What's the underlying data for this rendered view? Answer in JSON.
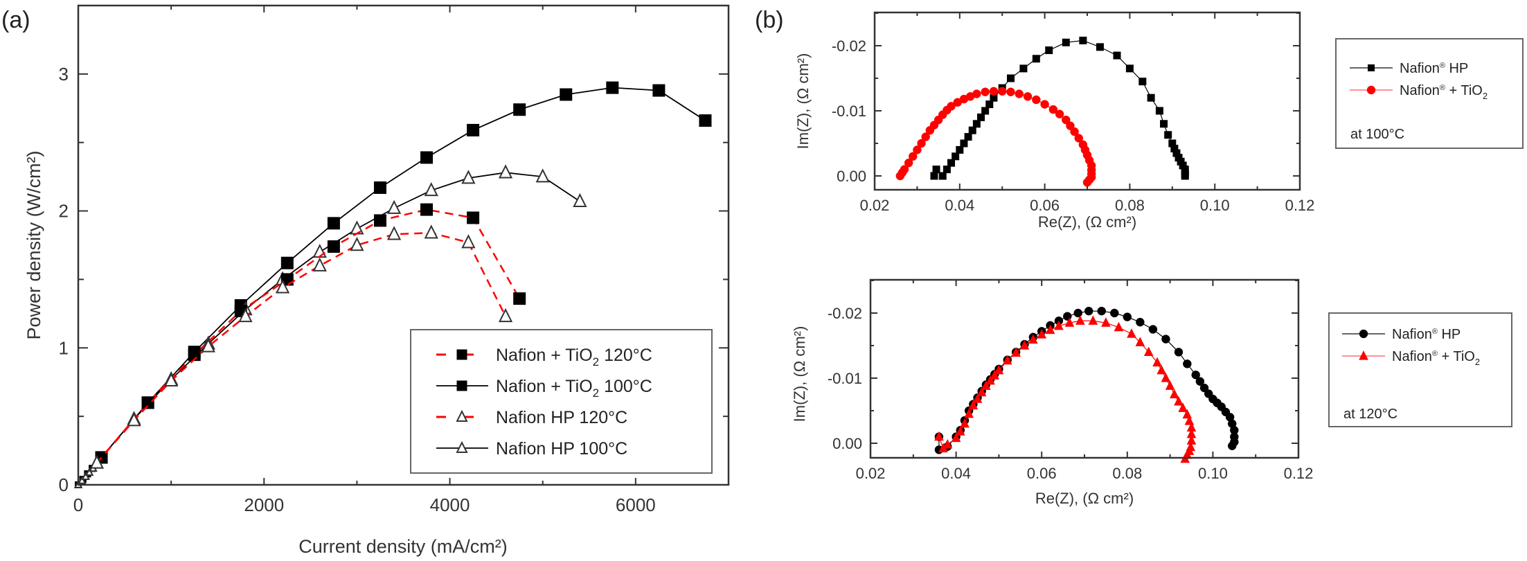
{
  "chart_data": [
    {
      "id": "a",
      "panel_label": "(a)",
      "type": "line",
      "title": "",
      "xlabel": "Current density (mA/cm²)",
      "ylabel": "Power density (W/cm²)",
      "xlim": [
        0,
        7000
      ],
      "ylim": [
        0,
        3.5
      ],
      "xticks": [
        0,
        2000,
        4000,
        6000
      ],
      "xticks_minor": [
        1000,
        3000,
        5000,
        7000
      ],
      "yticks": [
        0,
        1,
        2,
        3
      ],
      "yticks_minor": [
        0.5,
        1.5,
        2.5,
        3.5
      ],
      "grid": false,
      "legend_position": "bottom-right",
      "series": [
        {
          "name": "Nafion + TiO2 120°C",
          "label_main": "Nafion + TiO",
          "label_sub": "2",
          "label_tail": " 120°C",
          "color": "#ff0000",
          "line": "dashed",
          "marker": "square-filled",
          "x": [
            0,
            50,
            100,
            150,
            250,
            750,
            1250,
            1750,
            2250,
            2750,
            3250,
            3750,
            4250,
            4750
          ],
          "y": [
            0,
            0.04,
            0.08,
            0.12,
            0.2,
            0.6,
            0.95,
            1.27,
            1.5,
            1.74,
            1.93,
            2.01,
            1.95,
            1.36
          ]
        },
        {
          "name": "Nafion + TiO2 100°C",
          "label_main": "Nafion + TiO",
          "label_sub": "2",
          "label_tail": " 100°C",
          "color": "#000000",
          "line": "solid",
          "marker": "square-filled",
          "x": [
            0,
            50,
            100,
            150,
            250,
            750,
            1250,
            1750,
            2250,
            2750,
            3250,
            3750,
            4250,
            4750,
            5250,
            5750,
            6250,
            6750
          ],
          "y": [
            0,
            0.04,
            0.08,
            0.12,
            0.2,
            0.6,
            0.97,
            1.31,
            1.62,
            1.91,
            2.17,
            2.39,
            2.59,
            2.74,
            2.85,
            2.9,
            2.88,
            2.66
          ]
        },
        {
          "name": "Nafion HP 120°C",
          "label_main": "Nafion HP 120°C",
          "label_sub": "",
          "label_tail": "",
          "color": "#ff0000",
          "line": "dashed",
          "marker": "triangle-open",
          "x": [
            0,
            40,
            80,
            120,
            160,
            200,
            600,
            1000,
            1400,
            1800,
            2200,
            2600,
            3000,
            3400,
            3800,
            4200,
            4600
          ],
          "y": [
            0,
            0.03,
            0.06,
            0.09,
            0.12,
            0.16,
            0.47,
            0.76,
            1.01,
            1.23,
            1.44,
            1.6,
            1.75,
            1.83,
            1.84,
            1.77,
            1.23
          ]
        },
        {
          "name": "Nafion HP 100°C",
          "label_main": "Nafion HP 100°C",
          "label_sub": "",
          "label_tail": "",
          "color": "#000000",
          "line": "solid",
          "marker": "triangle-open",
          "x": [
            0,
            40,
            80,
            120,
            160,
            200,
            600,
            1000,
            1400,
            1800,
            2200,
            2600,
            3000,
            3400,
            3800,
            4200,
            4600,
            5000,
            5400
          ],
          "y": [
            0,
            0.03,
            0.06,
            0.09,
            0.12,
            0.16,
            0.48,
            0.77,
            1.03,
            1.28,
            1.5,
            1.7,
            1.87,
            2.02,
            2.15,
            2.24,
            2.28,
            2.25,
            2.07
          ]
        }
      ]
    },
    {
      "id": "b-top",
      "panel_label": "(b)",
      "type": "scatter",
      "title": "",
      "xlabel": "Re(Z), (Ω cm²)",
      "ylabel": "Im(Z), (Ω cm²)",
      "xlim": [
        0.02,
        0.12
      ],
      "ylim": [
        0.002,
        -0.0255
      ],
      "xticks": [
        0.02,
        0.04,
        0.06,
        0.08,
        0.1,
        0.12
      ],
      "xtick_labels": [
        "0.02",
        "0.04",
        "0.06",
        "0.08",
        "0.10",
        "0.12"
      ],
      "yticks": [
        0.0,
        -0.01,
        -0.02
      ],
      "ytick_labels": [
        "0.00",
        "-0.01",
        "-0.02"
      ],
      "grid": false,
      "legend_position": "right-outside",
      "annotation": "at 100°C",
      "series": [
        {
          "name": "Nafion® HP",
          "label_main": "Nafion",
          "label_sup": "®",
          "label_tail": " HP",
          "label_sub": "",
          "color": "#000000",
          "marker": "square",
          "x": [
            0.034,
            0.0345,
            0.036,
            0.037,
            0.038,
            0.039,
            0.04,
            0.041,
            0.042,
            0.043,
            0.044,
            0.045,
            0.046,
            0.047,
            0.048,
            0.05,
            0.052,
            0.055,
            0.058,
            0.061,
            0.065,
            0.069,
            0.073,
            0.077,
            0.08,
            0.083,
            0.085,
            0.087,
            0.088,
            0.089,
            0.09,
            0.0905,
            0.091,
            0.0915,
            0.092,
            0.0925,
            0.093,
            0.093,
            0.093,
            0.093
          ],
          "y": [
            0.0,
            -0.001,
            0.0,
            -0.001,
            -0.002,
            -0.003,
            -0.004,
            -0.005,
            -0.006,
            -0.007,
            -0.008,
            -0.009,
            -0.01,
            -0.011,
            -0.012,
            -0.0135,
            -0.015,
            -0.0165,
            -0.018,
            -0.0193,
            -0.0205,
            -0.0208,
            -0.0198,
            -0.0185,
            -0.0165,
            -0.0145,
            -0.012,
            -0.01,
            -0.008,
            -0.0063,
            -0.005,
            -0.0042,
            -0.0035,
            -0.0028,
            -0.0022,
            -0.0016,
            -0.001,
            -0.0005,
            -0.0002,
            0.0
          ]
        },
        {
          "name": "Nafion® + TiO2",
          "label_main": "Nafion",
          "label_sup": "®",
          "label_tail": " + TiO",
          "label_sub": "2",
          "color": "#ff0000",
          "marker": "circle",
          "x": [
            0.026,
            0.0265,
            0.027,
            0.028,
            0.029,
            0.03,
            0.031,
            0.032,
            0.033,
            0.034,
            0.035,
            0.036,
            0.037,
            0.038,
            0.0395,
            0.041,
            0.0425,
            0.044,
            0.046,
            0.048,
            0.05,
            0.052,
            0.054,
            0.056,
            0.058,
            0.06,
            0.062,
            0.0635,
            0.065,
            0.066,
            0.067,
            0.068,
            0.069,
            0.0695,
            0.07,
            0.0705,
            0.071,
            0.071,
            0.071,
            0.071,
            0.0705,
            0.07
          ],
          "y": [
            0.0,
            -0.0005,
            -0.001,
            -0.002,
            -0.003,
            -0.004,
            -0.005,
            -0.006,
            -0.007,
            -0.0078,
            -0.0086,
            -0.0094,
            -0.0101,
            -0.0107,
            -0.0113,
            -0.0118,
            -0.0122,
            -0.0126,
            -0.0129,
            -0.013,
            -0.013,
            -0.0129,
            -0.0126,
            -0.0122,
            -0.0117,
            -0.011,
            -0.0102,
            -0.0095,
            -0.0086,
            -0.0077,
            -0.0068,
            -0.0058,
            -0.0048,
            -0.004,
            -0.0032,
            -0.0024,
            -0.0016,
            -0.0009,
            -0.0003,
            0.0002,
            0.0006,
            0.001
          ]
        }
      ]
    },
    {
      "id": "b-bottom",
      "panel_label": "",
      "type": "scatter",
      "title": "",
      "xlabel": "Re(Z), (Ω cm²)",
      "ylabel": "Im(Z), (Ω cm²)",
      "xlim": [
        0.02,
        0.12
      ],
      "ylim": [
        0.002,
        -0.0255
      ],
      "xticks": [
        0.02,
        0.04,
        0.06,
        0.08,
        0.1,
        0.12
      ],
      "xtick_labels": [
        "0.02",
        "0.04",
        "0.06",
        "0.08",
        "0.10",
        "0.12"
      ],
      "yticks": [
        0.0,
        -0.01,
        -0.02
      ],
      "ytick_labels": [
        "0.00",
        "-0.01",
        "-0.02"
      ],
      "grid": false,
      "legend_position": "right-outside",
      "annotation": "at 120°C",
      "series": [
        {
          "name": "Nafion® HP",
          "label_main": "Nafion",
          "label_sup": "®",
          "label_tail": " HP",
          "label_sub": "",
          "color": "#000000",
          "marker": "circle",
          "x": [
            0.036,
            0.036,
            0.038,
            0.04,
            0.041,
            0.042,
            0.043,
            0.044,
            0.045,
            0.046,
            0.047,
            0.048,
            0.049,
            0.05,
            0.052,
            0.054,
            0.056,
            0.058,
            0.06,
            0.062,
            0.064,
            0.066,
            0.0685,
            0.071,
            0.074,
            0.077,
            0.08,
            0.083,
            0.086,
            0.089,
            0.092,
            0.094,
            0.096,
            0.097,
            0.098,
            0.099,
            0.1,
            0.101,
            0.102,
            0.103,
            0.104,
            0.1045,
            0.105,
            0.105,
            0.105,
            0.1045
          ],
          "y": [
            -0.001,
            0.001,
            0.0005,
            -0.001,
            -0.002,
            -0.0035,
            -0.005,
            -0.006,
            -0.007,
            -0.008,
            -0.009,
            -0.0098,
            -0.0106,
            -0.0114,
            -0.0128,
            -0.014,
            -0.0152,
            -0.0163,
            -0.0172,
            -0.0181,
            -0.0188,
            -0.0195,
            -0.02,
            -0.0203,
            -0.0203,
            -0.02,
            -0.0194,
            -0.0186,
            -0.0175,
            -0.016,
            -0.014,
            -0.0122,
            -0.0105,
            -0.0095,
            -0.0085,
            -0.0076,
            -0.0068,
            -0.0062,
            -0.0056,
            -0.0048,
            -0.004,
            -0.003,
            -0.002,
            -0.001,
            -0.0002,
            0.0004
          ]
        },
        {
          "name": "Nafion® + TiO2",
          "label_main": "Nafion",
          "label_sup": "®",
          "label_tail": " + TiO",
          "label_sub": "2",
          "color": "#ff0000",
          "marker": "triangle",
          "x": [
            0.036,
            0.037,
            0.038,
            0.04,
            0.041,
            0.042,
            0.043,
            0.044,
            0.045,
            0.046,
            0.047,
            0.048,
            0.049,
            0.05,
            0.052,
            0.054,
            0.056,
            0.058,
            0.06,
            0.062,
            0.064,
            0.0665,
            0.069,
            0.072,
            0.075,
            0.078,
            0.081,
            0.083,
            0.085,
            0.087,
            0.088,
            0.089,
            0.09,
            0.091,
            0.092,
            0.093,
            0.094,
            0.0945,
            0.095,
            0.095,
            0.095,
            0.0948,
            0.0945,
            0.094,
            0.0935
          ],
          "y": [
            -0.001,
            0.0008,
            0.0002,
            -0.0008,
            -0.0018,
            -0.003,
            -0.0045,
            -0.0058,
            -0.0068,
            -0.0078,
            -0.0088,
            -0.0096,
            -0.0104,
            -0.0112,
            -0.0127,
            -0.0139,
            -0.015,
            -0.0159,
            -0.0167,
            -0.0174,
            -0.018,
            -0.0185,
            -0.0188,
            -0.0188,
            -0.0185,
            -0.0178,
            -0.0168,
            -0.0155,
            -0.014,
            -0.0124,
            -0.0112,
            -0.01,
            -0.0088,
            -0.0075,
            -0.0064,
            -0.0054,
            -0.0044,
            -0.0034,
            -0.0024,
            -0.0014,
            -0.0004,
            0.0006,
            0.0012,
            0.0018,
            0.0024
          ]
        }
      ]
    }
  ]
}
